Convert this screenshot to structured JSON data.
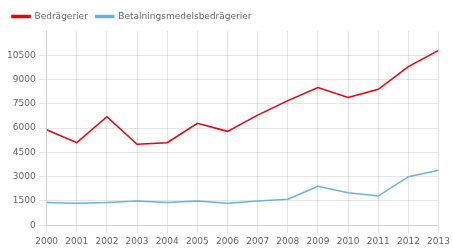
{
  "chart_data": {
    "type": "line",
    "x": [
      2000,
      2001,
      2002,
      2003,
      2004,
      2005,
      2006,
      2007,
      2008,
      2009,
      2010,
      2011,
      2012,
      2013
    ],
    "series": [
      {
        "name": "Bedrägerier",
        "color": "#e8000b",
        "values": [
          5900,
          5100,
          6700,
          5000,
          5100,
          6300,
          5800,
          6800,
          7700,
          8500,
          7900,
          8400,
          9800,
          10800
        ]
      },
      {
        "name": "Betalningsmedelsbedrägerier",
        "color": "#6ab4d2",
        "values": [
          1400,
          1350,
          1400,
          1500,
          1400,
          1500,
          1350,
          1500,
          1600,
          2400,
          2000,
          1800,
          3000,
          3400
        ]
      }
    ],
    "xlim": [
      2000,
      2013
    ],
    "xticks": [
      2000,
      2001,
      2002,
      2003,
      2004,
      2005,
      2006,
      2007,
      2008,
      2009,
      2010,
      2011,
      2012,
      2013
    ],
    "ylim": [
      0,
      12000
    ],
    "yticks": [
      0,
      1500,
      3000,
      4500,
      6000,
      7500,
      9000,
      10500
    ],
    "grid": true,
    "legend": "upper left"
  }
}
